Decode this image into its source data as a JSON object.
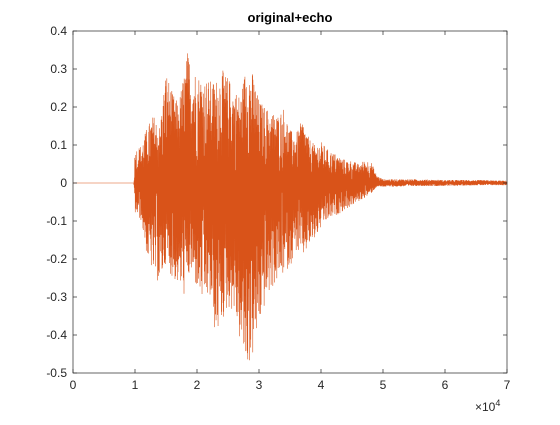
{
  "chart_data": {
    "type": "line",
    "title": "original+echo",
    "xlabel": "",
    "ylabel": "",
    "xlim": [
      0,
      70000
    ],
    "ylim": [
      -0.5,
      0.4
    ],
    "x_tick_values": [
      0,
      10000,
      20000,
      30000,
      40000,
      50000,
      60000,
      70000
    ],
    "x_tick_labels": [
      "0",
      "1",
      "2",
      "3",
      "4",
      "5",
      "6",
      "7"
    ],
    "x_exponent_label": "×10",
    "x_exponent_power": "4",
    "y_tick_values": [
      0.4,
      0.3,
      0.2,
      0.1,
      0,
      -0.1,
      -0.2,
      -0.3,
      -0.4,
      -0.5
    ],
    "y_tick_labels": [
      "0.4",
      "0.3",
      "0.2",
      "0.1",
      "0",
      "-0.1",
      "-0.2",
      "-0.3",
      "-0.4",
      "-0.5"
    ],
    "grid": false,
    "box": true,
    "series": [
      {
        "color": "#d95319",
        "envelope_x": [
          0,
          9800,
          10000,
          11000,
          12000,
          13000,
          14000,
          15000,
          16000,
          17000,
          18000,
          18500,
          19000,
          20000,
          21000,
          22000,
          23000,
          24000,
          25000,
          26000,
          27000,
          28000,
          29000,
          30000,
          31000,
          32000,
          33000,
          34000,
          35000,
          36000,
          37000,
          38000,
          39000,
          40000,
          41000,
          42000,
          43000,
          44000,
          45000,
          46000,
          47000,
          48000,
          48500,
          49000,
          50000,
          52000,
          55000,
          60000,
          65000,
          70000
        ],
        "envelope_upper": [
          0,
          0,
          0.09,
          0.1,
          0.15,
          0.18,
          0.15,
          0.3,
          0.24,
          0.21,
          0.3,
          0.35,
          0.32,
          0.29,
          0.28,
          0.27,
          0.27,
          0.3,
          0.28,
          0.25,
          0.23,
          0.32,
          0.29,
          0.22,
          0.2,
          0.19,
          0.18,
          0.2,
          0.14,
          0.13,
          0.17,
          0.12,
          0.1,
          0.11,
          0.09,
          0.08,
          0.07,
          0.06,
          0.06,
          0.05,
          0.06,
          0.06,
          0.04,
          0.02,
          0.01,
          0.01,
          0.01,
          0.008,
          0.008,
          0.006
        ],
        "envelope_lower": [
          0,
          0,
          -0.08,
          -0.1,
          -0.2,
          -0.24,
          -0.27,
          -0.21,
          -0.25,
          -0.27,
          -0.3,
          -0.26,
          -0.24,
          -0.28,
          -0.32,
          -0.3,
          -0.41,
          -0.37,
          -0.33,
          -0.34,
          -0.43,
          -0.49,
          -0.46,
          -0.38,
          -0.32,
          -0.28,
          -0.26,
          -0.24,
          -0.22,
          -0.18,
          -0.2,
          -0.17,
          -0.15,
          -0.12,
          -0.1,
          -0.09,
          -0.08,
          -0.07,
          -0.06,
          -0.05,
          -0.04,
          -0.03,
          -0.02,
          -0.01,
          -0.01,
          -0.01,
          -0.008,
          -0.008,
          -0.006,
          -0.006
        ]
      }
    ]
  }
}
